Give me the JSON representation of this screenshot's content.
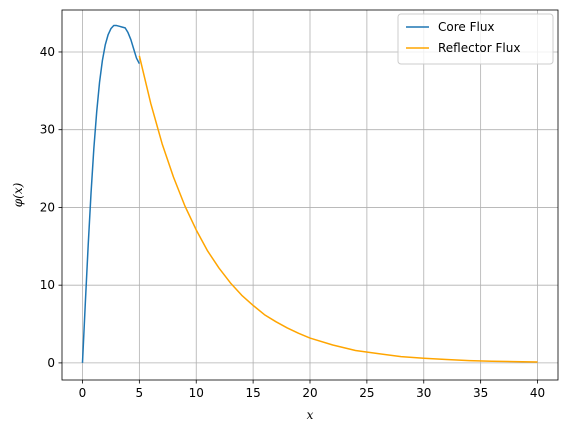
{
  "chart_data": {
    "type": "line",
    "xlabel": "x",
    "ylabel": "φ(x)",
    "xlim": [
      -1.8,
      41.8
    ],
    "ylim": [
      -2.2,
      45.4
    ],
    "xticks": [
      0,
      5,
      10,
      15,
      20,
      25,
      30,
      35,
      40
    ],
    "yticks": [
      0,
      10,
      20,
      30,
      40
    ],
    "grid": true,
    "legend_position": "top-right",
    "series": [
      {
        "name": "Core Flux",
        "color": "#1f77b4",
        "x": [
          0,
          0.25,
          0.5,
          0.75,
          1.0,
          1.25,
          1.5,
          1.75,
          2.0,
          2.25,
          2.5,
          2.75,
          3.0,
          3.25,
          3.5,
          3.75,
          4.0,
          4.25,
          4.5,
          4.75,
          5.0
        ],
        "y": [
          0,
          7.7,
          15.1,
          21.8,
          27.6,
          32.3,
          36.1,
          38.9,
          40.9,
          42.2,
          43.0,
          43.4,
          43.4,
          43.3,
          43.2,
          43.1,
          42.5,
          41.6,
          40.4,
          39.2,
          38.5
        ]
      },
      {
        "name": "Reflector Flux",
        "color": "#ffa500",
        "x": [
          5,
          6,
          7,
          8,
          9,
          10,
          11,
          12,
          13,
          14,
          15,
          16,
          17,
          18,
          19,
          20,
          22,
          24,
          26,
          28,
          30,
          32,
          34,
          36,
          38,
          40
        ],
        "y": [
          39.5,
          33.4,
          28.2,
          23.9,
          20.2,
          17.1,
          14.4,
          12.2,
          10.3,
          8.7,
          7.4,
          6.2,
          5.3,
          4.5,
          3.8,
          3.2,
          2.3,
          1.6,
          1.2,
          0.8,
          0.6,
          0.43,
          0.3,
          0.22,
          0.16,
          0.11
        ]
      }
    ]
  }
}
